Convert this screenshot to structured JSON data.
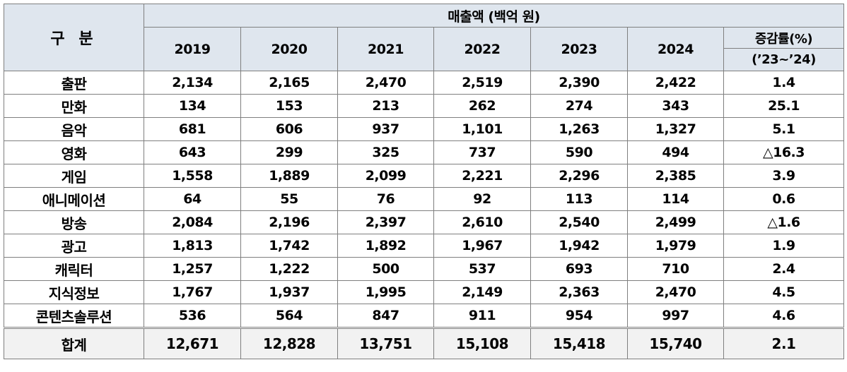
{
  "header": {
    "category": "구 분",
    "sales": "매출액 (백억 원)",
    "years": [
      "2019",
      "2020",
      "2021",
      "2022",
      "2023",
      "2024"
    ],
    "growth": "증감률(%)",
    "period": "(’23~’24)"
  },
  "rows": [
    [
      "출판",
      "2,134",
      "2,165",
      "2,470",
      "2,519",
      "2,390",
      "2,422",
      "1.4"
    ],
    [
      "만화",
      "134",
      "153",
      "213",
      "262",
      "274",
      "343",
      "25.1"
    ],
    [
      "음악",
      "681",
      "606",
      "937",
      "1,101",
      "1,263",
      "1,327",
      "5.1"
    ],
    [
      "영화",
      "643",
      "299",
      "325",
      "737",
      "590",
      "494",
      "△16.3"
    ],
    [
      "게임",
      "1,558",
      "1,889",
      "2,099",
      "2,221",
      "2,296",
      "2,385",
      "3.9"
    ],
    [
      "애니메이션",
      "64",
      "55",
      "76",
      "92",
      "113",
      "114",
      "0.6"
    ],
    [
      "방송",
      "2,084",
      "2,196",
      "2,397",
      "2,610",
      "2,540",
      "2,499",
      "△1.6"
    ],
    [
      "광고",
      "1,813",
      "1,742",
      "1,892",
      "1,967",
      "1,942",
      "1,979",
      "1.9"
    ],
    [
      "캐릭터",
      "1,257",
      "1,222",
      "500",
      "537",
      "693",
      "710",
      "2.4"
    ],
    [
      "지식정보",
      "1,767",
      "1,937",
      "1,995",
      "2,149",
      "2,363",
      "2,470",
      "4.5"
    ],
    [
      "콘텐츠솔루션",
      "536",
      "564",
      "847",
      "911",
      "954",
      "997",
      "4.6"
    ]
  ],
  "total": [
    "합계",
    "12,671",
    "12,828",
    "13,751",
    "15,108",
    "15,418",
    "15,740",
    "2.1"
  ]
}
